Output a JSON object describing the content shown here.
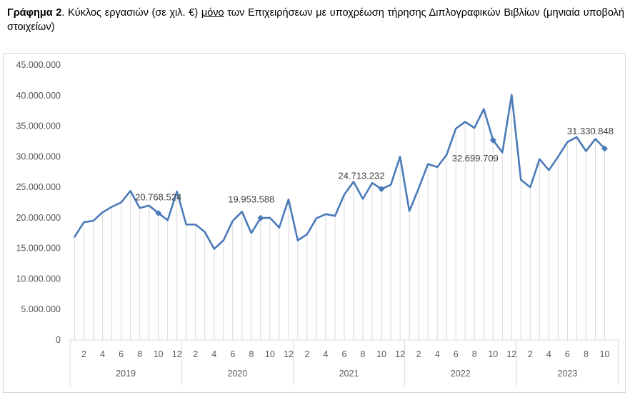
{
  "caption": {
    "label": "Γράφημα 2",
    "part1": ". Κύκλος εργασιών (σε χιλ. €) ",
    "underlined": "μόνο",
    "part2": " των Επιχειρήσεων με υποχρέωση τήρησης Διπλογραφικών Βιβλίων (μηνιαία υποβολή στοιχείων)"
  },
  "colors": {
    "line": "#4a7ab8",
    "droplines": "#d9d9d9",
    "axis": "#d9d9d9",
    "text": "#595959"
  },
  "chart_data": {
    "type": "line",
    "title": "",
    "xlabel": "",
    "ylabel": "",
    "ylim": [
      0,
      45000000
    ],
    "yticks": [
      0,
      5000000,
      10000000,
      15000000,
      20000000,
      25000000,
      30000000,
      35000000,
      40000000,
      45000000
    ],
    "ytick_labels": [
      "0",
      "5.000.000",
      "10.000.000",
      "15.000.000",
      "20.000.000",
      "25.000.000",
      "30.000.000",
      "35.000.000",
      "40.000.000",
      "45.000.000"
    ],
    "years": [
      "2019",
      "2020",
      "2021",
      "2022",
      "2023"
    ],
    "month_tick_labels": [
      "2",
      "4",
      "6",
      "8",
      "10",
      "12"
    ],
    "month_tick_labels_last_year": [
      "2",
      "4",
      "6",
      "8",
      "10"
    ],
    "drop_lines": true,
    "series": [
      {
        "values": [
          16900000,
          19300000,
          19500000,
          20900000,
          21800000,
          22500000,
          24400000,
          21600000,
          22000000,
          20768524,
          19600000,
          24300000,
          18900000,
          18900000,
          17700000,
          14900000,
          16300000,
          19500000,
          21000000,
          17500000,
          19953588,
          20000000,
          18400000,
          23000000,
          16300000,
          17300000,
          19900000,
          20600000,
          20300000,
          23800000,
          25900000,
          23100000,
          25700000,
          24713232,
          25400000,
          30000000,
          21100000,
          24800000,
          28800000,
          28300000,
          30300000,
          34600000,
          35700000,
          34700000,
          37800000,
          32699709,
          30700000,
          40100000,
          26200000,
          25000000,
          29600000,
          27800000,
          30000000,
          32400000,
          33200000,
          30900000,
          32900000,
          31330848
        ]
      }
    ],
    "annotations": [
      {
        "year": "2019",
        "month": 10,
        "value": 20768524,
        "label": "20.768.524"
      },
      {
        "year": "2020",
        "month": 9,
        "value": 19953588,
        "label": "19.953.588"
      },
      {
        "year": "2021",
        "month": 10,
        "value": 24713232,
        "label": "24.713.232"
      },
      {
        "year": "2022",
        "month": 10,
        "value": 32699709,
        "label": "32.699.709"
      },
      {
        "year": "2023",
        "month": 10,
        "value": 31330848,
        "label": "31.330.848"
      }
    ]
  }
}
